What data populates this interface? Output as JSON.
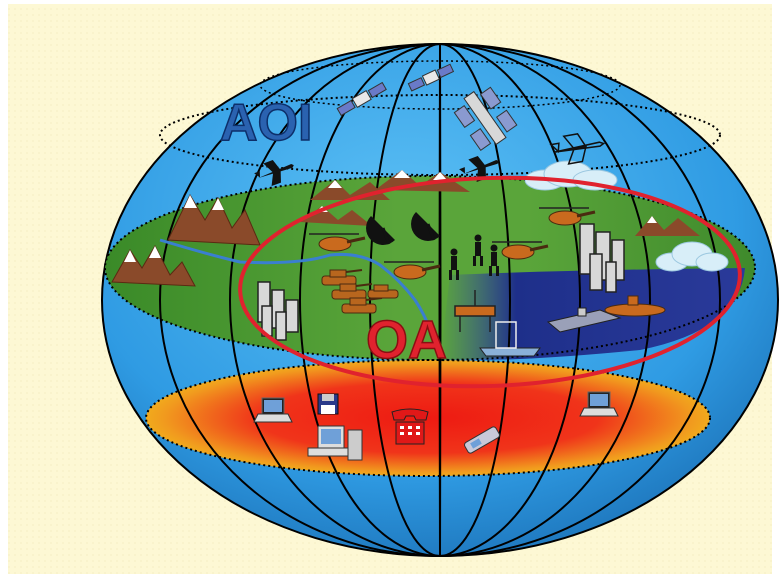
{
  "labels": {
    "aoi": "AOI",
    "oa": "OA"
  },
  "colors": {
    "page_background": "#fdf8d4",
    "globe_blue": "#2f9be3",
    "land_green": "#3d8a2a",
    "sea_blue": "#1e2f8a",
    "oa_ring": "#e0222e",
    "aoi_text": "#2a62b0",
    "oa_text": "#e0222e",
    "heat_red": "#e81a1a",
    "heat_yellow": "#f2c21a",
    "grid_line": "#000000",
    "mountain": "#8a4a2a",
    "snow": "#ffffff"
  },
  "icons": [
    "satellite-icon",
    "space-station-icon",
    "jet-icon",
    "helicopter-icon",
    "tank-icon",
    "soldier-icon",
    "radar-dish-icon",
    "building-icon",
    "ship-icon",
    "oil-rig-icon",
    "submarine-icon",
    "cloud-icon",
    "mountain-icon",
    "laptop-icon",
    "desktop-computer-icon",
    "telephone-icon",
    "mobile-phone-icon",
    "floppy-disk-icon"
  ]
}
